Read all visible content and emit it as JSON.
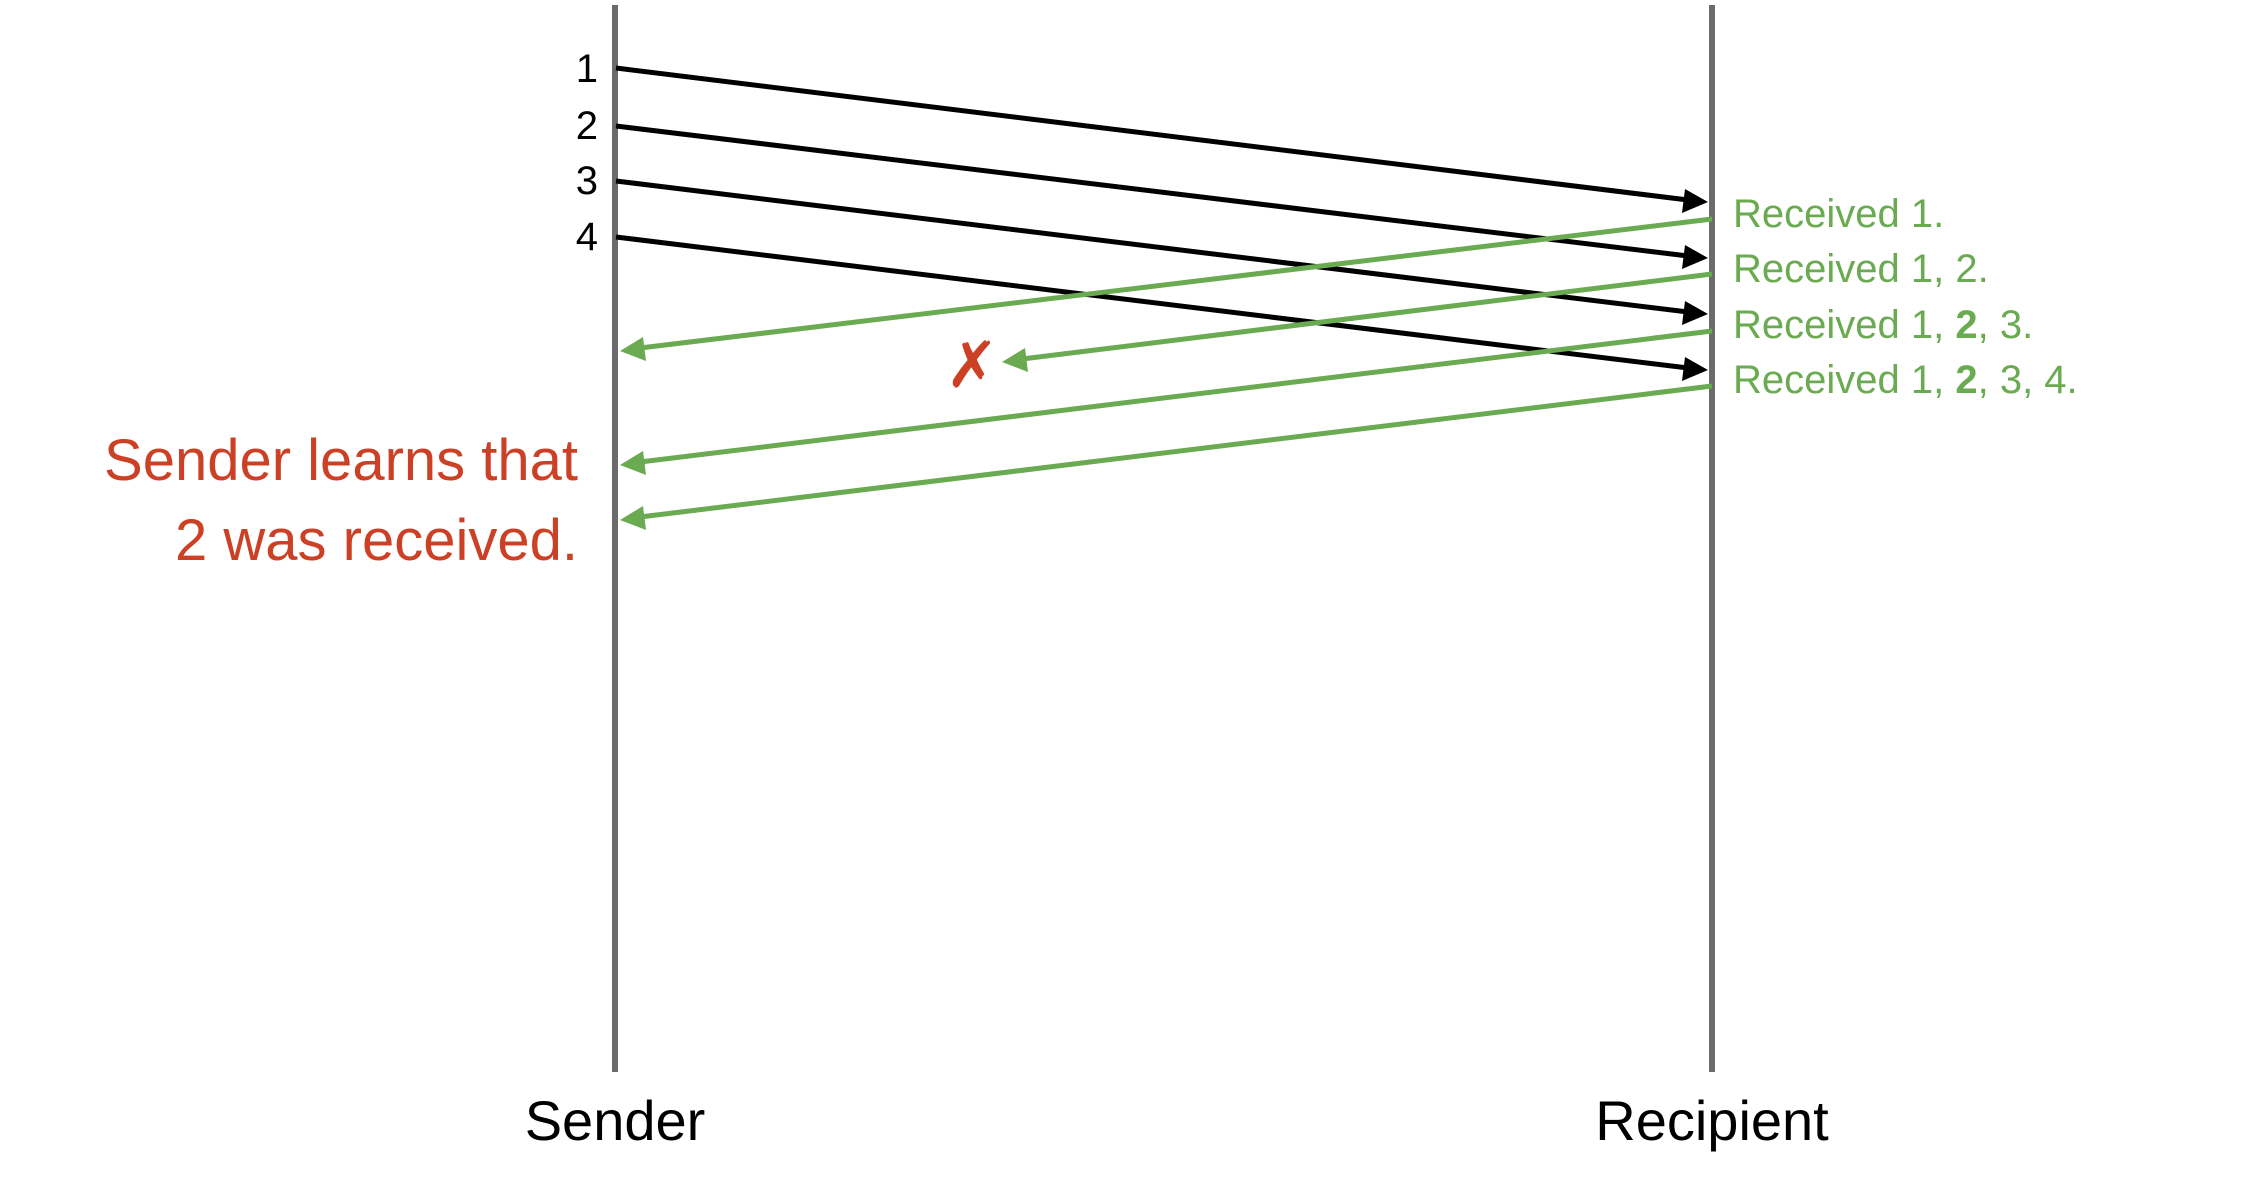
{
  "colors": {
    "timeline": "#6b6b6b",
    "packet": "#000000",
    "ack": "#6aaa50",
    "annotation": "#cc4125"
  },
  "sender": {
    "label": "Sender"
  },
  "recipient": {
    "label": "Recipient"
  },
  "packets": [
    {
      "label": "1"
    },
    {
      "label": "2"
    },
    {
      "label": "3"
    },
    {
      "label": "4"
    }
  ],
  "acks": [
    {
      "parts": [
        {
          "text": "Received 1.",
          "bold": false
        }
      ],
      "lost": false
    },
    {
      "parts": [
        {
          "text": "Received 1, 2.",
          "bold": false
        }
      ],
      "lost": true
    },
    {
      "parts": [
        {
          "text": "Received 1, ",
          "bold": false
        },
        {
          "text": "2",
          "bold": true
        },
        {
          "text": ", 3.",
          "bold": false
        }
      ],
      "lost": false
    },
    {
      "parts": [
        {
          "text": "Received 1, ",
          "bold": false
        },
        {
          "text": "2",
          "bold": true
        },
        {
          "text": ", 3, 4.",
          "bold": false
        }
      ],
      "lost": false
    }
  ],
  "loss_marker": {
    "symbol": "✗"
  },
  "annotation": {
    "line1": "Sender learns that",
    "line2": "2 was received."
  }
}
